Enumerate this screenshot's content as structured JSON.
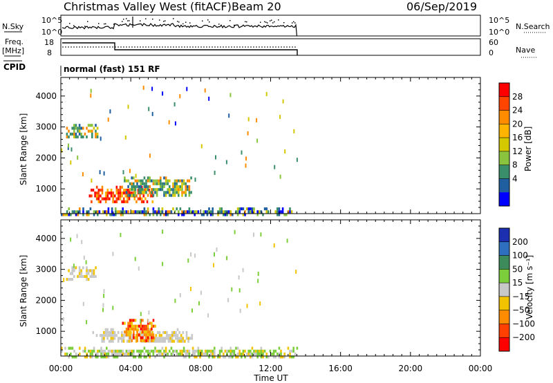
{
  "header": {
    "radar_name": "Christmas Valley West (fitACF)",
    "beam": "Beam 20",
    "date": "06/Sep/2019"
  },
  "noise_panel": {
    "left_label": "N.Sky",
    "left_ticks": [
      "10^5",
      "10^0"
    ],
    "right_ticks": [
      "10^5",
      "10^0"
    ],
    "right_label": "N.Search"
  },
  "freq_panel": {
    "left_label_line1": "Freq.",
    "left_label_line2": "[MHz]",
    "left_ticks": [
      "18",
      "8"
    ],
    "right_ticks": [
      "60",
      "0"
    ],
    "right_label": "Nave"
  },
  "cpid": {
    "label": "CPID",
    "mode": "normal (fast) 151 RF"
  },
  "x_axis": {
    "title": "Time UT",
    "tick_labels": [
      "00:00",
      "04:00",
      "08:00",
      "12:00",
      "16:00",
      "20:00",
      "00:00"
    ]
  },
  "power_colorbar": {
    "title": "Power [dB]",
    "tick_labels": [
      "28",
      "24",
      "20",
      "16",
      "12",
      "8",
      "4"
    ],
    "colors": [
      "#ff0000",
      "#ff4500",
      "#ff8c00",
      "#ffb400",
      "#d4c800",
      "#8ac43e",
      "#3a8f6a",
      "#1f5fa0",
      "#0000ff"
    ]
  },
  "velocity_colorbar": {
    "title": "Velocity [m s⁻¹]",
    "tick_labels": [
      "200",
      "100",
      "50",
      "15",
      "−15",
      "−50",
      "−100",
      "−200"
    ],
    "colors": [
      "#1c2fb0",
      "#2f6fbf",
      "#3d8a5a",
      "#7ccf3a",
      "#c8c8c8",
      "#f2c300",
      "#ff8c00",
      "#ff4000",
      "#ff0000"
    ]
  },
  "chart_data": [
    {
      "type": "heatmap",
      "title": "Power",
      "xlabel": "",
      "ylabel": "Slant Range [km]",
      "xlim_hours": [
        0,
        24
      ],
      "ylim_km": [
        200,
        4600
      ],
      "y_tick_labels": [
        "1000",
        "2000",
        "3000",
        "4000"
      ],
      "data_end_hours": 13.5,
      "regions": [
        {
          "t0": 0.0,
          "t1": 13.5,
          "r0": 200,
          "r1": 400,
          "level": "low-mixed"
        },
        {
          "t0": 1.6,
          "t1": 5.2,
          "r0": 600,
          "r1": 1100,
          "level": "high",
          "peak_db": 28
        },
        {
          "t0": 3.6,
          "t1": 7.5,
          "r0": 800,
          "r1": 1400,
          "level": "medium"
        },
        {
          "t0": 0.3,
          "t1": 2.1,
          "r0": 2700,
          "r1": 3100,
          "level": "medium"
        }
      ]
    },
    {
      "type": "heatmap",
      "title": "Velocity",
      "xlabel": "Time UT",
      "ylabel": "Slant Range [km]",
      "xlim_hours": [
        0,
        24
      ],
      "ylim_km": [
        200,
        4600
      ],
      "y_tick_labels": [
        "1000",
        "2000",
        "3000",
        "4000"
      ],
      "data_end_hours": 13.5,
      "regions": [
        {
          "t0": 0.0,
          "t1": 13.5,
          "r0": 200,
          "r1": 500,
          "level": "low-velocity"
        },
        {
          "t0": 1.8,
          "t1": 7.5,
          "r0": 650,
          "r1": 1100,
          "level": "ground-scatter"
        },
        {
          "t0": 3.5,
          "t1": 5.4,
          "r0": 700,
          "r1": 1400,
          "level": "negative",
          "min_ms": -200
        },
        {
          "t0": 0.3,
          "t1": 2.1,
          "r0": 2700,
          "r1": 3100,
          "level": "ground-scatter"
        }
      ]
    }
  ]
}
